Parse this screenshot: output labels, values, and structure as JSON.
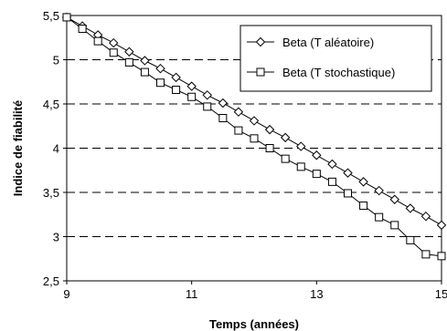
{
  "chart_data": {
    "type": "line",
    "xlabel": "Temps (années)",
    "ylabel": "Indice de fiabilité",
    "xlim": [
      9,
      15
    ],
    "ylim": [
      2.5,
      5.5
    ],
    "x_ticks": [
      "9",
      "11",
      "13",
      "15"
    ],
    "y_ticks": [
      "2,5",
      "3",
      "3,5",
      "4",
      "4,5",
      "5",
      "5,5"
    ],
    "grid": "horizontal dashed",
    "legend_position": "top-right",
    "series": [
      {
        "name": "Beta (T aléatoire)",
        "marker": "diamond",
        "x": [
          9,
          9.25,
          9.5,
          9.75,
          10,
          10.25,
          10.5,
          10.75,
          11,
          11.25,
          11.5,
          11.75,
          12,
          12.25,
          12.5,
          12.75,
          13,
          13.25,
          13.5,
          13.75,
          14,
          14.25,
          14.5,
          14.75,
          15
        ],
        "values": [
          5.48,
          5.38,
          5.28,
          5.19,
          5.09,
          4.99,
          4.9,
          4.8,
          4.7,
          4.6,
          4.51,
          4.41,
          4.31,
          4.21,
          4.12,
          4.02,
          3.92,
          3.82,
          3.72,
          3.62,
          3.52,
          3.42,
          3.32,
          3.23,
          3.13
        ]
      },
      {
        "name": "Beta (T stochastique)",
        "marker": "square",
        "x": [
          9,
          9.25,
          9.5,
          9.75,
          10,
          10.25,
          10.5,
          10.75,
          11,
          11.25,
          11.5,
          11.75,
          12,
          12.25,
          12.5,
          12.75,
          13,
          13.25,
          13.5,
          13.75,
          14,
          14.25,
          14.5,
          14.75,
          15
        ],
        "values": [
          5.48,
          5.35,
          5.21,
          5.08,
          4.97,
          4.86,
          4.74,
          4.66,
          4.58,
          4.47,
          4.34,
          4.2,
          4.11,
          4.0,
          3.88,
          3.79,
          3.71,
          3.62,
          3.49,
          3.35,
          3.22,
          3.13,
          2.96,
          2.8,
          2.78
        ]
      }
    ],
    "colors": {
      "line": "#000000",
      "marker_fill": "#ffffff",
      "grid": "#000000"
    }
  }
}
